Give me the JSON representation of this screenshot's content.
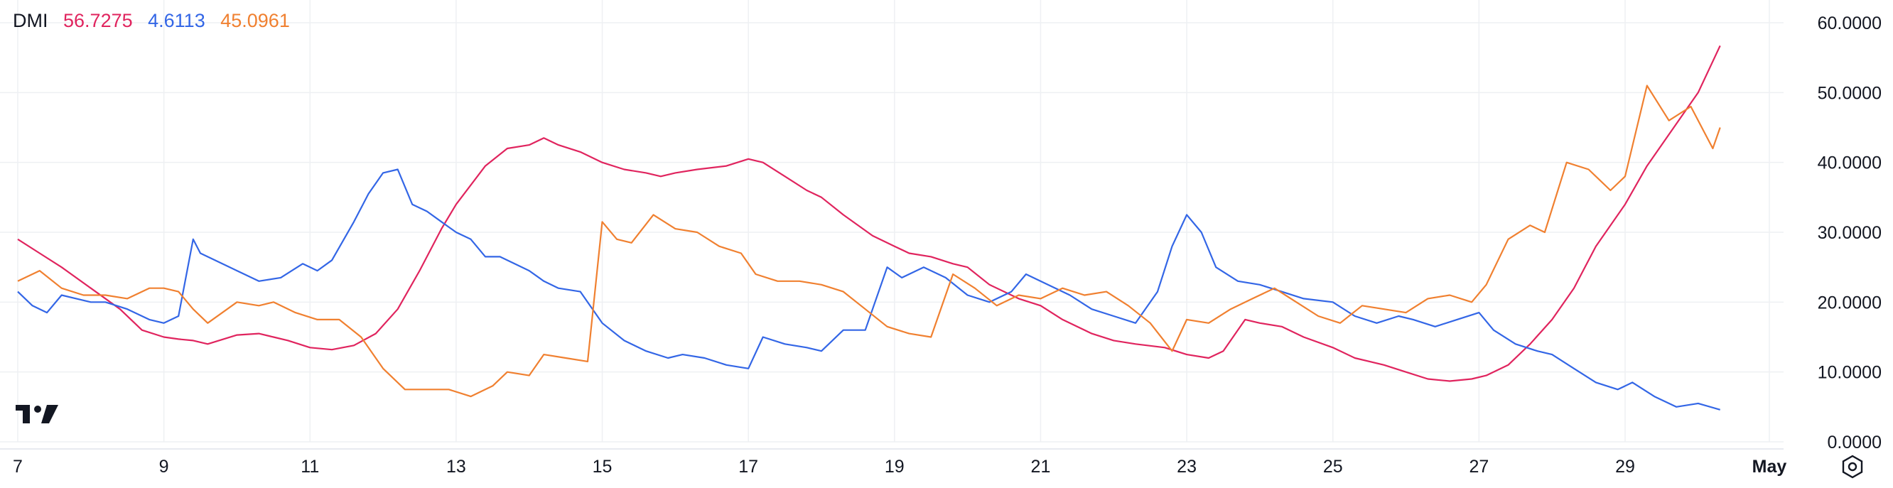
{
  "indicator": {
    "label": "DMI",
    "adx_value": "56.7275",
    "plus_di_value": "4.6113",
    "minus_di_value": "45.0961"
  },
  "colors": {
    "adx": "#e0245e",
    "plus_di": "#3366e6",
    "minus_di": "#f08030",
    "grid": "#eef0f3",
    "text": "#131722"
  },
  "icons": [
    "tradingview-logo-icon",
    "settings-icon"
  ],
  "chart_data": {
    "type": "line",
    "x_tick_labels": [
      "7",
      "9",
      "11",
      "13",
      "15",
      "17",
      "19",
      "21",
      "23",
      "25",
      "27",
      "29",
      "May"
    ],
    "y_tick_labels": [
      "0.0000",
      "10.0000",
      "20.0000",
      "30.0000",
      "40.0000",
      "50.0000",
      "60.0000"
    ],
    "ylim": [
      0,
      60
    ],
    "x_domain_days": [
      7,
      31.1
    ],
    "grid": true,
    "series": [
      {
        "name": "",
        "color": "#e0245e",
        "x": [
          7,
          7.3,
          7.6,
          8.0,
          8.4,
          8.7,
          9.0,
          9.2,
          9.4,
          9.6,
          10.0,
          10.3,
          10.5,
          10.7,
          11.0,
          11.3,
          11.6,
          11.9,
          12.2,
          12.5,
          12.8,
          13.0,
          13.4,
          13.7,
          14.0,
          14.2,
          14.4,
          14.7,
          15.0,
          15.3,
          15.6,
          15.8,
          16.0,
          16.3,
          16.7,
          17.0,
          17.2,
          17.5,
          17.8,
          18.0,
          18.3,
          18.7,
          19.0,
          19.2,
          19.5,
          19.8,
          20.0,
          20.3,
          20.7,
          21.0,
          21.3,
          21.7,
          22.0,
          22.3,
          22.7,
          23.0,
          23.3,
          23.5,
          23.8,
          24.0,
          24.3,
          24.6,
          25.0,
          25.3,
          25.7,
          26.0,
          26.3,
          26.6,
          26.9,
          27.1,
          27.4,
          27.7,
          28.0,
          28.3,
          28.6,
          29.0,
          29.3,
          29.6,
          30.0,
          30.3
        ],
        "y": [
          29,
          27,
          25,
          22,
          19,
          16,
          15,
          14.7,
          14.5,
          14,
          15.3,
          15.5,
          15,
          14.5,
          13.5,
          13.2,
          13.8,
          15.5,
          19,
          24.5,
          30.5,
          34,
          39.5,
          42,
          42.5,
          43.5,
          42.5,
          41.5,
          40,
          39,
          38.5,
          38,
          38.5,
          39,
          39.5,
          40.5,
          40,
          38,
          36,
          35,
          32.5,
          29.5,
          28,
          27,
          26.5,
          25.5,
          25,
          22.5,
          20.5,
          19.5,
          17.5,
          15.5,
          14.5,
          14,
          13.5,
          12.5,
          12,
          13,
          17.5,
          17,
          16.5,
          15,
          13.5,
          12,
          11,
          10,
          9,
          8.7,
          9,
          9.5,
          11,
          14,
          17.5,
          22,
          28,
          34,
          39.5,
          44,
          50,
          56.7
        ]
      },
      {
        "name": "",
        "color": "#3366e6",
        "x": [
          7,
          7.2,
          7.4,
          7.6,
          7.8,
          8.0,
          8.2,
          8.5,
          8.8,
          9.0,
          9.2,
          9.4,
          9.5,
          9.8,
          10.0,
          10.3,
          10.6,
          10.9,
          11.1,
          11.3,
          11.6,
          11.8,
          12.0,
          12.2,
          12.4,
          12.6,
          12.8,
          13.0,
          13.2,
          13.4,
          13.6,
          13.8,
          14.0,
          14.2,
          14.4,
          14.7,
          15.0,
          15.3,
          15.6,
          15.9,
          16.1,
          16.4,
          16.7,
          17.0,
          17.2,
          17.5,
          17.8,
          18.0,
          18.3,
          18.6,
          18.9,
          19.1,
          19.4,
          19.7,
          20.0,
          20.3,
          20.6,
          20.8,
          21.1,
          21.4,
          21.7,
          22.0,
          22.3,
          22.6,
          22.8,
          23.0,
          23.2,
          23.4,
          23.7,
          24.0,
          24.3,
          24.6,
          25.0,
          25.3,
          25.6,
          25.9,
          26.1,
          26.4,
          26.7,
          27.0,
          27.2,
          27.5,
          27.8,
          28.0,
          28.3,
          28.6,
          28.9,
          29.1,
          29.4,
          29.7,
          30.0,
          30.3
        ],
        "y": [
          21.5,
          19.5,
          18.5,
          21,
          20.5,
          20,
          20,
          19,
          17.5,
          17,
          18,
          29,
          27,
          25.5,
          24.5,
          23,
          23.5,
          25.5,
          24.5,
          26,
          31.5,
          35.5,
          38.5,
          39,
          34,
          33,
          31.5,
          30,
          29,
          26.5,
          26.5,
          25.5,
          24.5,
          23,
          22,
          21.5,
          17,
          14.5,
          13,
          12,
          12.5,
          12,
          11,
          10.5,
          15,
          14,
          13.5,
          13,
          16,
          16,
          25,
          23.5,
          25,
          23.5,
          21,
          20,
          21.5,
          24,
          22.5,
          21,
          19,
          18,
          17,
          21.5,
          28,
          32.5,
          30,
          25,
          23,
          22.5,
          21.5,
          20.5,
          20,
          18,
          17,
          18,
          17.5,
          16.5,
          17.5,
          18.5,
          16,
          14,
          13,
          12.5,
          10.5,
          8.5,
          7.5,
          8.5,
          6.5,
          5,
          5.5,
          4.6
        ]
      },
      {
        "name": "",
        "color": "#f08030",
        "x": [
          7,
          7.3,
          7.6,
          7.9,
          8.2,
          8.5,
          8.8,
          9.0,
          9.2,
          9.4,
          9.6,
          10.0,
          10.3,
          10.5,
          10.8,
          11.1,
          11.4,
          11.7,
          12.0,
          12.3,
          12.6,
          12.9,
          13.2,
          13.5,
          13.7,
          14.0,
          14.2,
          14.5,
          14.8,
          15.0,
          15.2,
          15.4,
          15.7,
          16.0,
          16.3,
          16.6,
          16.9,
          17.1,
          17.4,
          17.7,
          18.0,
          18.3,
          18.6,
          18.9,
          19.2,
          19.5,
          19.8,
          20.1,
          20.4,
          20.7,
          21.0,
          21.3,
          21.6,
          21.9,
          22.2,
          22.5,
          22.8,
          23.0,
          23.3,
          23.6,
          23.9,
          24.2,
          24.5,
          24.8,
          25.1,
          25.4,
          25.7,
          26.0,
          26.3,
          26.6,
          26.9,
          27.1,
          27.4,
          27.7,
          27.9,
          28.2,
          28.5,
          28.8,
          29.0,
          29.3,
          29.6,
          29.9,
          30.2,
          30.3
        ],
        "y": [
          23,
          24.5,
          22,
          21,
          21,
          20.5,
          22,
          22,
          21.5,
          19,
          17,
          20,
          19.5,
          20,
          18.5,
          17.5,
          17.5,
          15,
          10.5,
          7.5,
          7.5,
          7.5,
          6.5,
          8,
          10,
          9.5,
          12.5,
          12,
          11.5,
          31.5,
          29,
          28.5,
          32.5,
          30.5,
          30,
          28,
          27,
          24,
          23,
          23,
          22.5,
          21.5,
          19,
          16.5,
          15.5,
          15,
          24,
          22,
          19.5,
          21,
          20.5,
          22,
          21,
          21.5,
          19.5,
          17,
          13,
          17.5,
          17,
          19,
          20.5,
          22,
          20,
          18,
          17,
          19.5,
          19,
          18.5,
          20.5,
          21,
          20,
          22.5,
          29,
          31,
          30,
          40,
          39,
          36,
          38,
          51,
          46,
          48,
          42,
          45
        ]
      }
    ]
  }
}
